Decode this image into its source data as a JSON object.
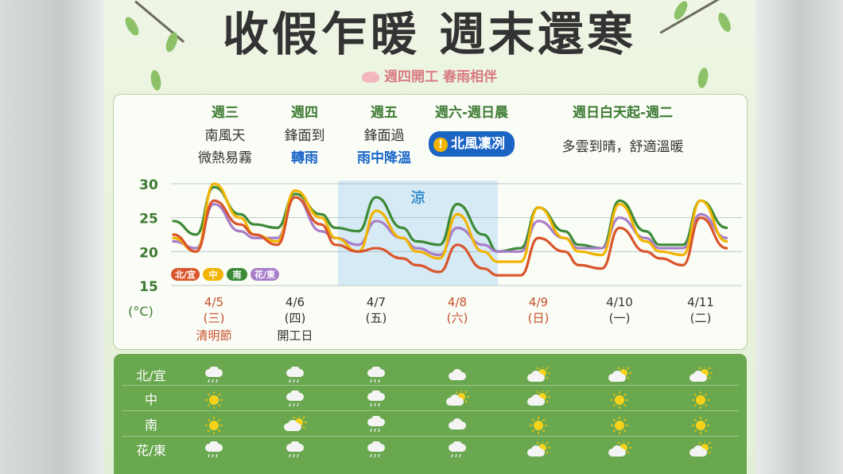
{
  "header": {
    "title": "收假乍暖 週末還寒",
    "subtitle": "週四開工 春雨相伴"
  },
  "periods": [
    {
      "label": "週三",
      "lines": [
        "南風天",
        "微熱易霧"
      ],
      "highlight_line": ""
    },
    {
      "label": "週四",
      "lines": [
        "鋒面到"
      ],
      "highlight_line": "轉雨"
    },
    {
      "label": "週五",
      "lines": [
        "鋒面過"
      ],
      "highlight_line": "雨中降溫"
    },
    {
      "label": "週六-週日晨",
      "pill": "北風凜冽"
    },
    {
      "label": "週日白天起-週二",
      "lines": [
        "多雲到晴，舒適溫暖"
      ]
    }
  ],
  "cool_band_label": "涼",
  "colors": {
    "north": "#d9552b",
    "central": "#f2b400",
    "south": "#3b8a35",
    "east": "#a77dc9",
    "cool_band": "#cfe6f5",
    "accent_blue": "#1b66c9"
  },
  "chart_data": {
    "type": "line",
    "ylabel": "(°C)",
    "ylim": [
      15,
      30
    ],
    "yticks": [
      "30",
      "25",
      "20",
      "15"
    ],
    "x": [
      "4/5",
      "4/6",
      "4/7",
      "4/8",
      "4/9",
      "4/10",
      "4/11"
    ],
    "x_weekday": [
      "(三)",
      "(四)",
      "(五)",
      "(六)",
      "(日)",
      "(一)",
      "(二)"
    ],
    "x_notes": [
      "清明節",
      "開工日",
      "",
      "",
      "",
      "",
      ""
    ],
    "legend": [
      "北/宜",
      "中",
      "南",
      "花/東"
    ],
    "series": [
      {
        "name": "北/宜",
        "values": [
          [
            22.5,
            20,
            27.5,
            24
          ],
          [
            22.5,
            21,
            28,
            24
          ],
          [
            21,
            20,
            20.5,
            19
          ],
          [
            18,
            17,
            21,
            17.5
          ],
          [
            16.5,
            16.5,
            22,
            20
          ],
          [
            18,
            17.5,
            23.5,
            20
          ],
          [
            19,
            18,
            25,
            20.5
          ]
        ]
      },
      {
        "name": "中",
        "values": [
          [
            22,
            20,
            30,
            25
          ],
          [
            22.5,
            21.5,
            29,
            25
          ],
          [
            22,
            20,
            26,
            22
          ],
          [
            20,
            19,
            25.5,
            20
          ],
          [
            18.5,
            18.5,
            26.5,
            22
          ],
          [
            20,
            19.5,
            27,
            21.5
          ],
          [
            20,
            19.5,
            27.5,
            21.5
          ]
        ]
      },
      {
        "name": "南",
        "values": [
          [
            24.5,
            22.5,
            29.5,
            25.5
          ],
          [
            24,
            23.5,
            28.5,
            25.5
          ],
          [
            23.5,
            23,
            28,
            23.5
          ],
          [
            21.5,
            21,
            27,
            22.5
          ],
          [
            20,
            20.5,
            26.5,
            23
          ],
          [
            21,
            20.5,
            27.5,
            23
          ],
          [
            21,
            21,
            27.5,
            23.5
          ]
        ]
      },
      {
        "name": "花/東",
        "values": [
          [
            21.5,
            20.5,
            27,
            23
          ],
          [
            22,
            22,
            28,
            23
          ],
          [
            22,
            21,
            24.5,
            22
          ],
          [
            20.5,
            19.5,
            23.5,
            21
          ],
          [
            20,
            20,
            24.5,
            22
          ],
          [
            20.5,
            20.5,
            25,
            22
          ],
          [
            20.5,
            20.5,
            25.5,
            22
          ]
        ]
      }
    ],
    "cool_band_days": [
      2,
      4
    ]
  },
  "weather_table": {
    "regions": [
      "北/宜",
      "中",
      "南",
      "花/東"
    ],
    "icons": [
      [
        "cloud-rain",
        "cloud-rain",
        "cloud-rain",
        "cloud",
        "sun-cloud",
        "sun-cloud",
        "sun-cloud"
      ],
      [
        "sun",
        "cloud-rain",
        "cloud-rain",
        "sun-cloud",
        "sun-cloud",
        "sun",
        "sun"
      ],
      [
        "sun",
        "sun-cloud",
        "cloud-rain",
        "cloud",
        "sun",
        "sun",
        "sun"
      ],
      [
        "cloud-rain",
        "cloud-rain",
        "cloud-rain",
        "cloud-rain",
        "sun-cloud",
        "sun-cloud",
        "sun-cloud"
      ]
    ]
  }
}
